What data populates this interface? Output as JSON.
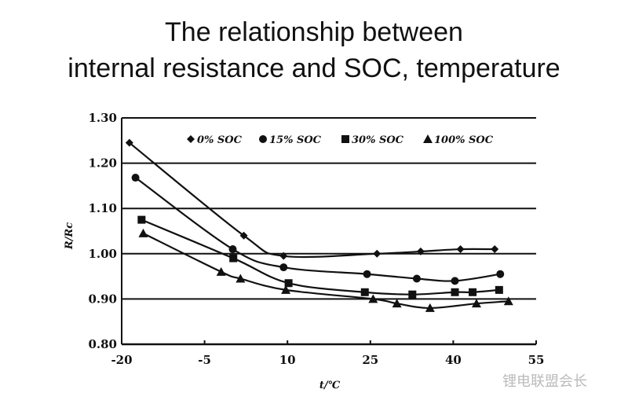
{
  "title_line1": "The relationship between",
  "title_line2": "internal resistance and SOC, temperature",
  "watermark": "锂电联盟会长",
  "chart_data": {
    "type": "line",
    "title": "The relationship between internal resistance and SOC, temperature",
    "xlabel": "t/℃",
    "ylabel": "R/Rc",
    "xlim": [
      -20,
      55
    ],
    "ylim": [
      0.8,
      1.3
    ],
    "xticks": [
      "-20",
      "-5",
      "10",
      "25",
      "40",
      "55"
    ],
    "yticks": [
      "1.30",
      "1.20",
      "1.10",
      "1.00",
      "0.90",
      "0.80"
    ],
    "grid": "horizontal",
    "legend": "top",
    "color": "#111111",
    "series": [
      {
        "name": "0% SOC",
        "marker": "diamond",
        "x": [
          -18.6,
          2.1,
          9.3,
          26.2,
          34.1,
          41.3,
          47.5
        ],
        "y": [
          1.245,
          1.04,
          0.995,
          1.0,
          1.005,
          1.01,
          1.01
        ]
      },
      {
        "name": "15% SOC",
        "marker": "circle",
        "x": [
          -17.5,
          0.1,
          9.3,
          24.4,
          33.4,
          40.3,
          48.5
        ],
        "y": [
          1.168,
          1.01,
          0.97,
          0.955,
          0.945,
          0.94,
          0.955
        ]
      },
      {
        "name": "30% SOC",
        "marker": "square",
        "x": [
          -16.4,
          0.2,
          10.2,
          24.0,
          32.6,
          40.3,
          43.5,
          48.3
        ],
        "y": [
          1.075,
          0.99,
          0.935,
          0.915,
          0.91,
          0.915,
          0.915,
          0.92
        ]
      },
      {
        "name": "100% SOC",
        "marker": "triangle",
        "x": [
          -16.1,
          -2.0,
          1.5,
          9.7,
          25.5,
          29.8,
          35.8,
          44.2,
          50.0
        ],
        "y": [
          1.045,
          0.96,
          0.945,
          0.92,
          0.9,
          0.89,
          0.88,
          0.89,
          0.895
        ]
      }
    ]
  }
}
